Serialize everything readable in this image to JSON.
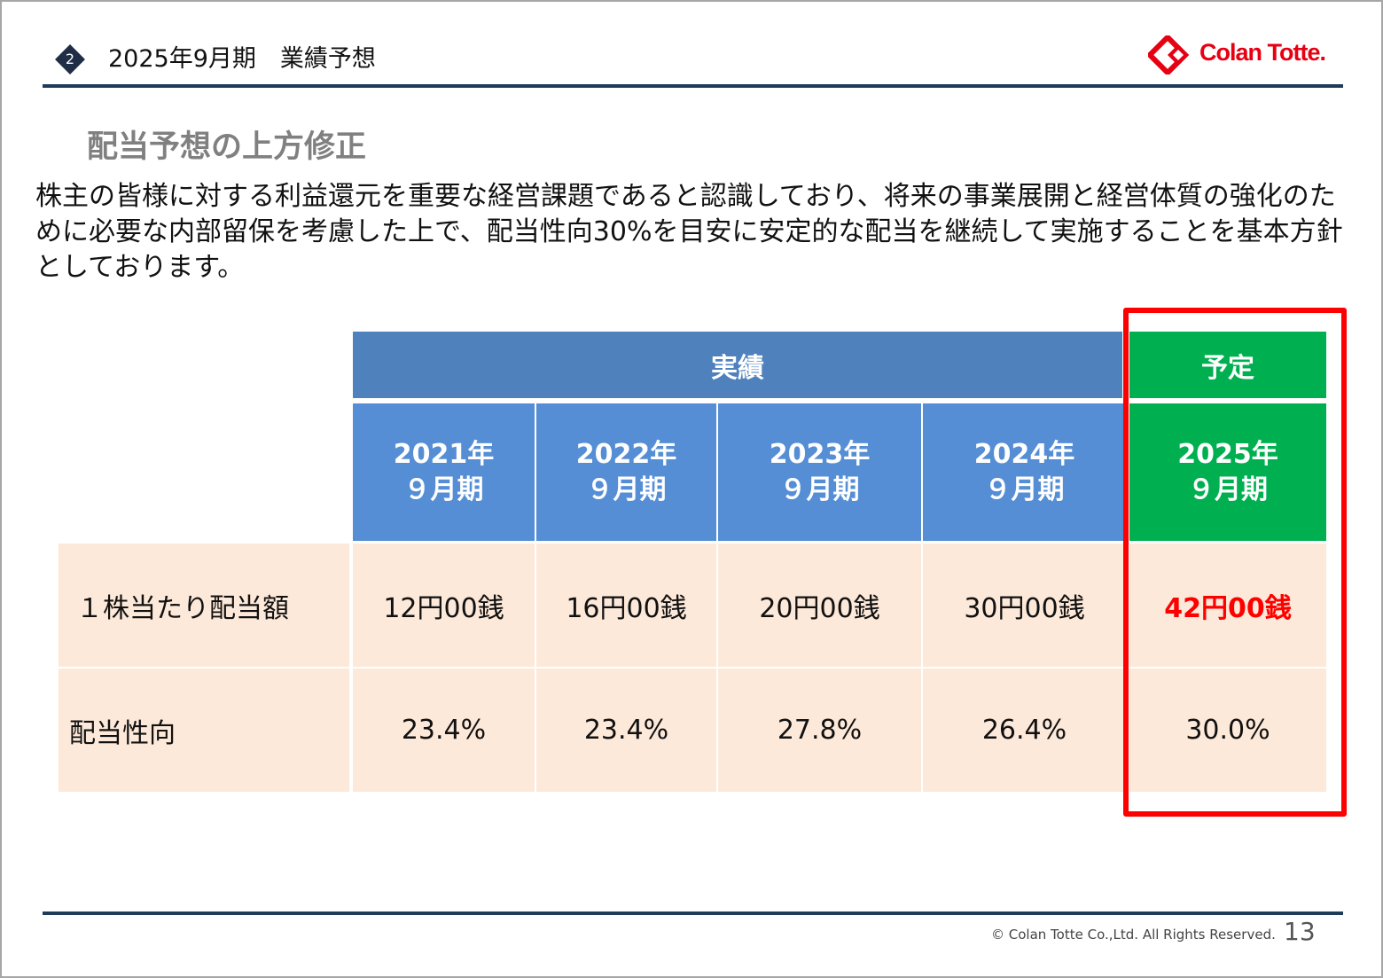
{
  "header": {
    "section_number": "2",
    "section_title": "2025年9月期　業績予想",
    "logo_text": "Colan Totte.",
    "logo_color": "#e60012"
  },
  "subtitle": "配当予想の上方修正",
  "body_text": "株主の皆様に対する利益還元を重要な経営課題であると認識しており、将来の事業展開と経営体質の強化のために必要な内部留保を考慮した上で、配当性向30%を目安に安定的な配当を継続して実施することを基本方針としております。",
  "table": {
    "group_actual": "実績",
    "group_plan": "予定",
    "years": [
      {
        "year": "2021年",
        "period": "９月期"
      },
      {
        "year": "2022年",
        "period": "９月期"
      },
      {
        "year": "2023年",
        "period": "９月期"
      },
      {
        "year": "2024年",
        "period": "９月期"
      },
      {
        "year": "2025年",
        "period": "９月期"
      }
    ],
    "rows": [
      {
        "label": "１株当たり配当額",
        "values": [
          "12円00銭",
          "16円00銭",
          "20円00銭",
          "30円00銭",
          "42円00銭"
        ]
      },
      {
        "label": "配当性向",
        "values": [
          "23.4%",
          "23.4%",
          "27.8%",
          "26.4%",
          "30.0%"
        ]
      }
    ],
    "colors": {
      "actual_header": "#4f81bd",
      "year_header": "#558ed5",
      "plan_header": "#00b050",
      "row_bg": "#fde9d9",
      "highlight": "#ff0000"
    }
  },
  "footer": {
    "copyright": "© Colan Totte Co.,Ltd. All Rights Reserved.",
    "page_number": "13"
  }
}
